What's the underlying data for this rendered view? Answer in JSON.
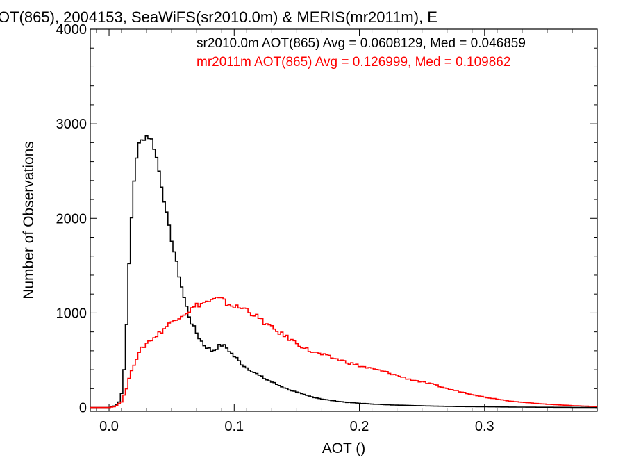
{
  "chart_data": {
    "type": "line",
    "title": "OT(865), 2004153, SeaWiFS(sr2010.0m) & MERIS(mr2011m), E",
    "xlabel": "AOT ()",
    "ylabel": "Number of Observations",
    "xlim": [
      -0.015,
      0.39
    ],
    "ylim": [
      -40,
      4000
    ],
    "x_ticks": [
      "0.0",
      "0.1",
      "0.2",
      "0.3"
    ],
    "x_tick_values": [
      0.0,
      0.1,
      0.2,
      0.3
    ],
    "y_ticks": [
      "0",
      "1000",
      "2000",
      "3000",
      "4000"
    ],
    "y_tick_values": [
      0,
      1000,
      2000,
      3000,
      4000
    ],
    "grid": false,
    "legend_position": "top-right",
    "annotations": [
      "sr2010.0m AOT(865) Avg = 0.0608129, Med = 0.046859",
      "mr2011m AOT(865) Avg = 0.126999, Med = 0.109862"
    ],
    "series": [
      {
        "name": "sr2010.0m",
        "color": "#000000",
        "x": [
          -0.015,
          0.0,
          0.005,
          0.008,
          0.01,
          0.012,
          0.014,
          0.016,
          0.018,
          0.02,
          0.022,
          0.024,
          0.026,
          0.028,
          0.03,
          0.032,
          0.034,
          0.036,
          0.038,
          0.04,
          0.042,
          0.044,
          0.046,
          0.048,
          0.05,
          0.052,
          0.054,
          0.056,
          0.058,
          0.06,
          0.062,
          0.064,
          0.066,
          0.068,
          0.07,
          0.072,
          0.074,
          0.076,
          0.078,
          0.08,
          0.082,
          0.084,
          0.086,
          0.088,
          0.09,
          0.092,
          0.094,
          0.096,
          0.098,
          0.1,
          0.102,
          0.104,
          0.106,
          0.108,
          0.11,
          0.115,
          0.12,
          0.125,
          0.13,
          0.135,
          0.14,
          0.15,
          0.16,
          0.17,
          0.18,
          0.19,
          0.2,
          0.22,
          0.24,
          0.26,
          0.28,
          0.3,
          0.32,
          0.34,
          0.36,
          0.38,
          0.39
        ],
        "y": [
          0,
          0,
          20,
          60,
          150,
          400,
          900,
          1500,
          2000,
          2400,
          2650,
          2780,
          2820,
          2850,
          2870,
          2860,
          2830,
          2750,
          2640,
          2500,
          2350,
          2200,
          2040,
          1900,
          1780,
          1650,
          1520,
          1400,
          1280,
          1160,
          1060,
          970,
          900,
          840,
          790,
          740,
          700,
          660,
          640,
          620,
          600,
          610,
          630,
          650,
          660,
          650,
          630,
          600,
          570,
          540,
          520,
          490,
          460,
          440,
          420,
          380,
          340,
          300,
          270,
          240,
          210,
          160,
          120,
          90,
          70,
          55,
          45,
          30,
          22,
          15,
          10,
          8,
          5,
          3,
          2,
          1,
          0
        ]
      },
      {
        "name": "mr2011m",
        "color": "#ff0000",
        "x": [
          -0.015,
          0.0,
          0.005,
          0.01,
          0.014,
          0.018,
          0.022,
          0.026,
          0.03,
          0.034,
          0.038,
          0.042,
          0.046,
          0.05,
          0.054,
          0.058,
          0.062,
          0.066,
          0.07,
          0.074,
          0.078,
          0.082,
          0.086,
          0.09,
          0.094,
          0.098,
          0.102,
          0.106,
          0.11,
          0.114,
          0.118,
          0.122,
          0.126,
          0.13,
          0.135,
          0.14,
          0.145,
          0.15,
          0.155,
          0.16,
          0.17,
          0.18,
          0.19,
          0.2,
          0.21,
          0.22,
          0.23,
          0.24,
          0.25,
          0.26,
          0.27,
          0.28,
          0.29,
          0.3,
          0.31,
          0.32,
          0.33,
          0.34,
          0.35,
          0.36,
          0.37,
          0.38,
          0.39
        ],
        "y": [
          0,
          0,
          10,
          60,
          200,
          400,
          520,
          620,
          680,
          720,
          760,
          810,
          860,
          900,
          950,
          980,
          1010,
          1040,
          1080,
          1100,
          1120,
          1130,
          1150,
          1140,
          1100,
          1080,
          1060,
          1050,
          1040,
          1000,
          960,
          920,
          880,
          840,
          800,
          760,
          720,
          680,
          640,
          600,
          560,
          520,
          480,
          440,
          410,
          380,
          340,
          300,
          270,
          240,
          200,
          170,
          140,
          110,
          90,
          70,
          55,
          45,
          35,
          28,
          20,
          15,
          10
        ]
      }
    ]
  }
}
